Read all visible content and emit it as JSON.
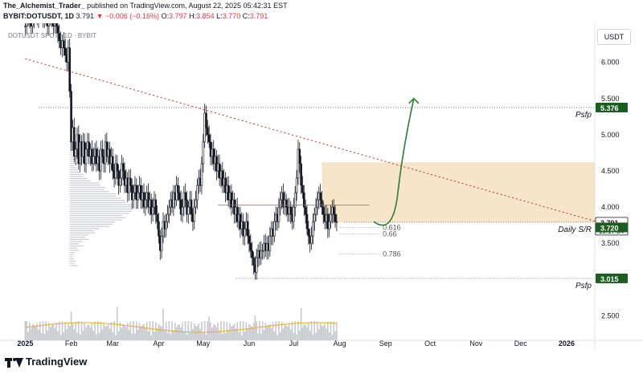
{
  "header": {
    "author": "The_Alchemist_Trader_",
    "published_text": "published on TradingView.com, August 22, 2025 05:42:31 EST",
    "symbol": "BYBIT:DOTUSDT, 1D",
    "last": "3.791",
    "change": "▼ −0.006 (−0.16%)",
    "o_label": "O:",
    "o": "3.797",
    "h_label": "H:",
    "h": "3.854",
    "l_label": "L:",
    "l": "3.770",
    "c_label": "C:",
    "c": "3.791"
  },
  "chart_title": "DOTUSDT SPOT · 1D · BYBIT",
  "currency_button": "USDT",
  "footer": {
    "brand": "TradingView"
  },
  "colors": {
    "up": "#131722",
    "down": "#131722",
    "band": "#f4dcb8",
    "curve": "#2e7d32",
    "trendline": "#c62828",
    "green_tag": "#1b5e20",
    "volume": "#c7c9cf",
    "ma": "#f5a623"
  },
  "chart_data": {
    "type": "candlestick",
    "yticks": [
      "6.000",
      "5.500",
      "5.000",
      "4.500",
      "4.000",
      "3.500",
      "3.000",
      "2.500"
    ],
    "ytick_values": [
      6.0,
      5.5,
      5.0,
      4.5,
      4.0,
      3.5,
      3.0,
      2.5
    ],
    "ylim": [
      2.16,
      6.54
    ],
    "xticks": [
      "2025",
      "Feb",
      "Mar",
      "Apr",
      "May",
      "Jun",
      "Jul",
      "Aug",
      "Sep",
      "Oct",
      "Nov",
      "Dec",
      "2026"
    ],
    "xtick_days": [
      0,
      31,
      59,
      90,
      120,
      151,
      181,
      212,
      243,
      273,
      304,
      334,
      365
    ],
    "xlim_days": [
      -17,
      384
    ],
    "price_tags": [
      {
        "value": 5.376,
        "label": "5.376",
        "color": "green"
      },
      {
        "value": 3.791,
        "label": "3.791",
        "color": "dark"
      },
      {
        "value": 3.72,
        "label": "3.720",
        "color": "green"
      },
      {
        "value": 3.015,
        "label": "3.015",
        "color": "green"
      }
    ],
    "countdown": "13:17:34",
    "levels": [
      {
        "name": "Psfp",
        "value": 5.376,
        "start_day": 9
      },
      {
        "name": "Daily S/R",
        "value": 3.791,
        "start_day": 215
      },
      {
        "name": "Psfp",
        "value": 3.015,
        "start_day": 142
      }
    ],
    "fib": [
      {
        "label": "0.616",
        "value": 3.72
      },
      {
        "label": "0.66",
        "value": 3.63
      },
      {
        "label": "0.786",
        "value": 3.35
      }
    ],
    "band": {
      "low": 3.791,
      "high": 4.62,
      "start_day": 200
    },
    "trendline": {
      "start_day": 0,
      "start_value": 6.05,
      "end_day": 385,
      "end_value": 3.8
    },
    "projection": [
      {
        "day": 235,
        "value": 3.8
      },
      {
        "day": 248,
        "value": 4.2
      },
      {
        "day": 262,
        "value": 5.5
      }
    ],
    "candles_close": [
      6.5,
      6.6,
      6.7,
      6.6,
      6.5,
      6.6,
      6.8,
      6.7,
      6.6,
      6.7,
      6.8,
      6.7,
      6.6,
      6.7,
      6.6,
      6.5,
      6.6,
      6.7,
      6.6,
      6.5,
      6.6,
      6.5,
      6.4,
      6.3,
      6.2,
      6.3,
      6.2,
      6.1,
      6.0,
      6.2,
      5.6,
      4.9,
      5.1,
      4.7,
      4.8,
      5.0,
      4.6,
      4.9,
      4.7,
      4.9,
      4.6,
      4.8,
      4.9,
      4.7,
      4.8,
      4.6,
      4.7,
      4.8,
      4.6,
      4.7,
      4.5,
      4.8,
      4.7,
      4.6,
      4.9,
      4.7,
      4.8,
      4.6,
      4.7,
      4.5,
      4.4,
      4.6,
      4.5,
      4.3,
      4.4,
      4.6,
      4.5,
      4.3,
      4.4,
      4.2,
      4.4,
      4.3,
      4.1,
      4.2,
      4.3,
      4.1,
      4.2,
      4.3,
      4.1,
      4.2,
      4.0,
      4.1,
      4.2,
      4.0,
      4.1,
      3.9,
      4.0,
      4.1,
      3.9,
      3.8,
      3.6,
      3.4,
      3.6,
      3.8,
      3.7,
      3.8,
      3.9,
      4.0,
      4.1,
      4.0,
      4.2,
      4.1,
      4.3,
      4.2,
      4.1,
      3.9,
      4.0,
      4.2,
      4.1,
      3.9,
      4.0,
      4.1,
      3.9,
      3.8,
      4.0,
      4.1,
      4.3,
      4.4,
      4.3,
      4.6,
      4.9,
      5.3,
      5.1,
      5.0,
      4.9,
      4.7,
      4.8,
      4.6,
      4.7,
      4.5,
      4.6,
      4.4,
      4.5,
      4.3,
      4.4,
      4.2,
      4.3,
      4.1,
      4.2,
      4.0,
      4.1,
      3.9,
      4.0,
      3.8,
      3.9,
      3.7,
      3.8,
      3.6,
      3.7,
      3.8,
      3.6,
      3.5,
      3.4,
      3.3,
      3.2,
      3.1,
      3.3,
      3.4,
      3.3,
      3.4,
      3.4,
      3.5,
      3.4,
      3.5,
      3.4,
      3.6,
      3.7,
      3.6,
      3.8,
      3.9,
      3.8,
      4.0,
      4.1,
      4.2,
      4.0,
      4.1,
      4.0,
      3.9,
      4.0,
      3.9,
      3.8,
      4.0,
      4.2,
      4.4,
      4.8,
      4.6,
      4.3,
      4.2,
      4.0,
      3.9,
      3.7,
      3.6,
      3.5,
      3.6,
      3.8,
      3.9,
      4.0,
      4.1,
      4.2,
      4.1,
      4.0,
      3.9,
      3.8,
      3.9,
      3.7,
      3.8,
      3.9,
      4.0,
      3.9,
      3.8,
      3.79
    ],
    "volume_note": "volume histogram with moving average along the bottom"
  }
}
